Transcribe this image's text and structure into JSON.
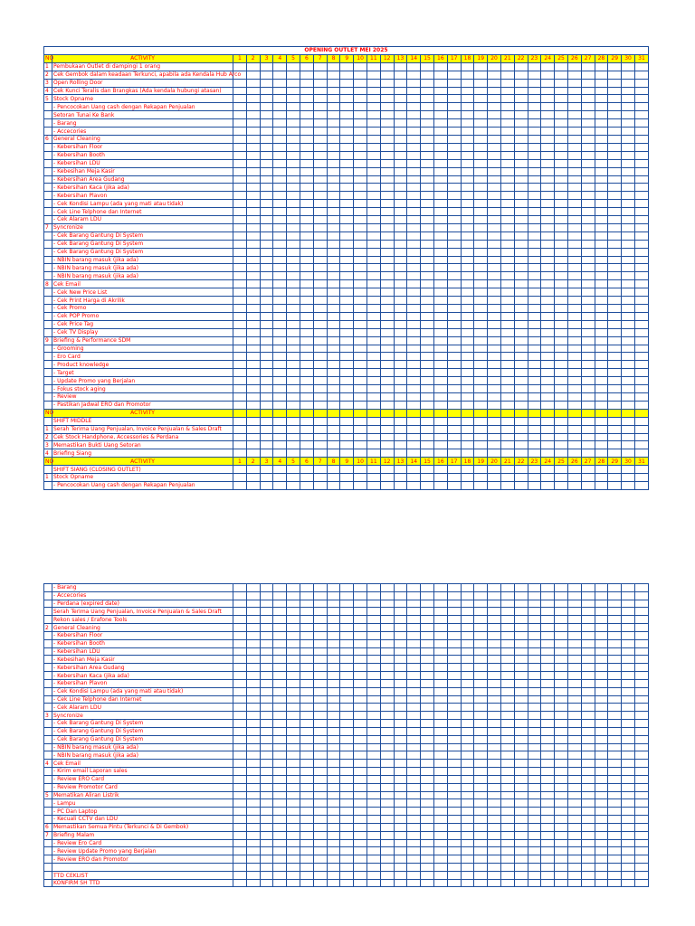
{
  "sheet1": {
    "title": "OPENING OUTLET MEI 2025",
    "header_no": "NO",
    "header_activity": "ACTIVITY",
    "days": [
      "1",
      "2",
      "3",
      "4",
      "5",
      "6",
      "7",
      "8",
      "9",
      "10",
      "11",
      "12",
      "13",
      "14",
      "15",
      "16",
      "17",
      "18",
      "19",
      "20",
      "21",
      "22",
      "23",
      "24",
      "25",
      "26",
      "27",
      "28",
      "29",
      "30",
      "31"
    ],
    "rows": [
      {
        "kind": "item",
        "no": "1",
        "text": "Pembukaan Outlet di dampingi 1 orang"
      },
      {
        "kind": "item",
        "no": "2",
        "text": "Cek Gembok dalam keadaan Terkunci,  apabila ada Kendala Hub Arco"
      },
      {
        "kind": "item",
        "no": "3",
        "text": "Open Rolling Door"
      },
      {
        "kind": "item",
        "no": "4",
        "text": "Cek Kunci Teralis dan Brangkas (Ada kendala hubungi atasan)"
      },
      {
        "kind": "item",
        "no": "5",
        "text": "Stock Opname"
      },
      {
        "kind": "item",
        "no": "",
        "text": "- Pencocokan Uang cash dengan Rekapan Penjualan"
      },
      {
        "kind": "item",
        "no": "",
        "text": "Setoran Tunai Ke Bank"
      },
      {
        "kind": "item",
        "no": "",
        "text": "- Barang"
      },
      {
        "kind": "item",
        "no": "",
        "text": "- Accecories"
      },
      {
        "kind": "item",
        "no": "6",
        "text": "General Cleaning"
      },
      {
        "kind": "item",
        "no": "",
        "text": "- Kebersihan Floor"
      },
      {
        "kind": "item",
        "no": "",
        "text": "- Kebersihan Booth"
      },
      {
        "kind": "item",
        "no": "",
        "text": "- Kebersihan LDU"
      },
      {
        "kind": "item",
        "no": "",
        "text": "- Kebesihan Meja Kasir"
      },
      {
        "kind": "item",
        "no": "",
        "text": "- Kebersihan Area Gudang"
      },
      {
        "kind": "item",
        "no": "",
        "text": "- Kebersihan Kaca (jika ada)"
      },
      {
        "kind": "item",
        "no": "",
        "text": "- Kebersihan Plavon"
      },
      {
        "kind": "item",
        "no": "",
        "text": "- Cek Kondisi Lampu (ada yang mati atau tidak)"
      },
      {
        "kind": "item",
        "no": "",
        "text": "- Cek Line Telphone dan Internet"
      },
      {
        "kind": "item",
        "no": "",
        "text": "- Cek Alaram LDU"
      },
      {
        "kind": "item",
        "no": "7",
        "text": "Syncronize"
      },
      {
        "kind": "item",
        "no": "",
        "text": "- Cek Barang Gantung Di System"
      },
      {
        "kind": "item",
        "no": "",
        "text": "- Cek Barang Gantung Di System"
      },
      {
        "kind": "item",
        "no": "",
        "text": "- Cek Barang Gantung Di System"
      },
      {
        "kind": "item",
        "no": "",
        "text": "- NBIN barang masuk (jika ada)"
      },
      {
        "kind": "item",
        "no": "",
        "text": "- NBIN barang masuk (jika ada)"
      },
      {
        "kind": "item",
        "no": "",
        "text": "- NBIN barang masuk (jika ada)"
      },
      {
        "kind": "item",
        "no": "8",
        "text": "Cek Email"
      },
      {
        "kind": "item",
        "no": "",
        "text": "- Cek New Price List"
      },
      {
        "kind": "item",
        "no": "",
        "text": "- Cek Print Harga di Akrilik"
      },
      {
        "kind": "item",
        "no": "",
        "text": "- Cek Promo"
      },
      {
        "kind": "item",
        "no": "",
        "text": "- Cek POP Promo"
      },
      {
        "kind": "item",
        "no": "",
        "text": "- Cek Price Tag"
      },
      {
        "kind": "item",
        "no": "",
        "text": "- Cek TV Display"
      },
      {
        "kind": "item",
        "no": "9",
        "text": "Briefing & Performance SDM"
      },
      {
        "kind": "item",
        "no": "",
        "text": "- Grooming"
      },
      {
        "kind": "item",
        "no": "",
        "text": "- Ero Card"
      },
      {
        "kind": "item",
        "no": "",
        "text": "- Product knowledge"
      },
      {
        "kind": "item",
        "no": "",
        "text": "- Target"
      },
      {
        "kind": "item",
        "no": "",
        "text": "- Update Promo yang Berjalan"
      },
      {
        "kind": "item",
        "no": "",
        "text": "- Fokus stock aging"
      },
      {
        "kind": "item",
        "no": "",
        "text": "-  Review"
      },
      {
        "kind": "item",
        "no": "",
        "text": "- Pastikan Jadwal ERO dan Promotor"
      },
      {
        "kind": "header",
        "no": "NO",
        "text": "ACTIVITY",
        "show_days": false
      },
      {
        "kind": "item",
        "no": "",
        "text": "SHIFT MIDDLE"
      },
      {
        "kind": "item",
        "no": "1",
        "text": "Serah Terima Uang Penjualan, Invoice Penjualan & Sales Draft"
      },
      {
        "kind": "item",
        "no": "2",
        "text": "Cek Stock Handphone, Accessories & Perdana"
      },
      {
        "kind": "item",
        "no": "3",
        "text": "Memastikan Bukti Uang Setoran"
      },
      {
        "kind": "item",
        "no": "4",
        "text": "Briefing Siang"
      },
      {
        "kind": "header",
        "no": "NO",
        "text": "ACTIVITY",
        "show_days": true
      },
      {
        "kind": "item",
        "no": "",
        "text": "SHIFT SIANG (CLOSING OUTLET)"
      },
      {
        "kind": "item",
        "no": "1",
        "text": "Stock Opname"
      },
      {
        "kind": "item",
        "no": "",
        "text": "- Pencocokan Uang cash dengan Rekapan Penjualan"
      }
    ]
  },
  "sheet2": {
    "rows": [
      {
        "kind": "item",
        "no": "",
        "text": "- Barang"
      },
      {
        "kind": "item",
        "no": "",
        "text": "- Accecories"
      },
      {
        "kind": "item",
        "no": "",
        "text": "- Perdana (expired date)"
      },
      {
        "kind": "item",
        "no": "",
        "text": "Serah Terima Uang Penjualan, Invoice Penjualan & Sales Draft"
      },
      {
        "kind": "item",
        "no": "",
        "text": "Rekon sales / Erafone Tools"
      },
      {
        "kind": "item",
        "no": "2",
        "text": "General Cleaning"
      },
      {
        "kind": "item",
        "no": "",
        "text": "- Kebersihan Floor"
      },
      {
        "kind": "item",
        "no": "",
        "text": "- Kebersihan Booth"
      },
      {
        "kind": "item",
        "no": "",
        "text": "- Kebersihan LDU"
      },
      {
        "kind": "item",
        "no": "",
        "text": "- Kebesihan Meja Kasir"
      },
      {
        "kind": "item",
        "no": "",
        "text": "- Kebersihan Area Gudang"
      },
      {
        "kind": "item",
        "no": "",
        "text": "- Kebersihan Kaca (jika ada)"
      },
      {
        "kind": "item",
        "no": "",
        "text": "- Kebersihan Plavon"
      },
      {
        "kind": "item",
        "no": "",
        "text": "- Cek Kondisi Lampu (ada yang mati atau tidak)"
      },
      {
        "kind": "item",
        "no": "",
        "text": "- Cek Line Telphone dan Internet"
      },
      {
        "kind": "item",
        "no": "",
        "text": "- Cek Alaram LDU"
      },
      {
        "kind": "item",
        "no": "3",
        "text": "Syncronize"
      },
      {
        "kind": "item",
        "no": "",
        "text": "- Cek Barang Gantung Di System"
      },
      {
        "kind": "item",
        "no": "",
        "text": "- Cek Barang Gantung Di System"
      },
      {
        "kind": "item",
        "no": "",
        "text": "- Cek Barang Gantung Di System"
      },
      {
        "kind": "item",
        "no": "",
        "text": "- NBIN barang masuk (jika ada)"
      },
      {
        "kind": "item",
        "no": "",
        "text": "- NBIN barang masuk (jika ada)"
      },
      {
        "kind": "item",
        "no": "4",
        "text": "Cek Email"
      },
      {
        "kind": "item",
        "no": "",
        "text": "- Kirim email Laporan sales"
      },
      {
        "kind": "item",
        "no": "",
        "text": "- Review ERO Card"
      },
      {
        "kind": "item",
        "no": "",
        "text": "- Review Promotor Card"
      },
      {
        "kind": "item",
        "no": "5",
        "text": "Mematikan Aliran Listrik"
      },
      {
        "kind": "item",
        "no": "",
        "text": "- Lampu"
      },
      {
        "kind": "item",
        "no": "",
        "text": "- PC Dan Laptop"
      },
      {
        "kind": "item",
        "no": "",
        "text": "- Kecuali CCTV dan LDU"
      },
      {
        "kind": "item",
        "no": "6",
        "text": "Memastikan Semua Pintu (Terkunci & Di Gembok)"
      },
      {
        "kind": "item",
        "no": "7",
        "text": "Briefing Malam"
      },
      {
        "kind": "item",
        "no": "",
        "text": "- Review Ero Card"
      },
      {
        "kind": "item",
        "no": "",
        "text": "- Review Update Promo yang Berjalan"
      },
      {
        "kind": "item",
        "no": "",
        "text": "- Review ERO dan Promotor"
      },
      {
        "kind": "item",
        "no": "",
        "text": ""
      },
      {
        "kind": "tall",
        "no": "",
        "text": "TTD CEKLIST"
      },
      {
        "kind": "tall",
        "no": "",
        "text": "KONFIRM SH TTD"
      }
    ]
  },
  "colors": {
    "text": "#ff0000",
    "grid": "#1f4e9c",
    "header_fill": "#ffff00"
  }
}
